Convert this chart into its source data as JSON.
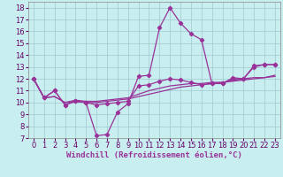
{
  "background_color": "#c8eef0",
  "plot_bg_color": "#c8eef0",
  "grid_color": "#a0c8d0",
  "line_color": "#993399",
  "xlabel": "Windchill (Refroidissement éolien,°C)",
  "xlabel_fontsize": 6.5,
  "tick_fontsize": 6.0,
  "xlim": [
    -0.5,
    23.5
  ],
  "ylim": [
    7,
    18.5
  ],
  "yticks": [
    7,
    8,
    9,
    10,
    11,
    12,
    13,
    14,
    15,
    16,
    17,
    18
  ],
  "xticks": [
    0,
    1,
    2,
    3,
    4,
    5,
    6,
    7,
    8,
    9,
    10,
    11,
    12,
    13,
    14,
    15,
    16,
    17,
    18,
    19,
    20,
    21,
    22,
    23
  ],
  "series1_x": [
    0,
    1,
    2,
    3,
    4,
    5,
    6,
    7,
    8,
    9,
    10,
    11,
    12,
    13,
    14,
    15,
    16,
    17,
    18,
    19,
    20,
    21,
    22,
    23
  ],
  "series1_y": [
    12.0,
    10.4,
    11.0,
    9.8,
    10.1,
    10.0,
    7.2,
    7.3,
    9.2,
    9.9,
    12.2,
    12.3,
    16.3,
    18.0,
    16.7,
    15.8,
    15.3,
    11.6,
    11.6,
    12.1,
    12.0,
    13.1,
    13.2,
    13.2
  ],
  "series2_x": [
    0,
    1,
    2,
    3,
    4,
    5,
    6,
    7,
    8,
    9,
    10,
    11,
    12,
    13,
    14,
    15,
    16,
    17,
    18,
    19,
    20,
    21,
    22,
    23
  ],
  "series2_y": [
    12.0,
    10.4,
    10.5,
    10.0,
    10.1,
    10.0,
    10.0,
    10.1,
    10.2,
    10.3,
    10.5,
    10.7,
    10.9,
    11.1,
    11.3,
    11.4,
    11.5,
    11.6,
    11.7,
    11.8,
    11.9,
    12.0,
    12.1,
    12.2
  ],
  "series3_x": [
    0,
    1,
    2,
    3,
    4,
    5,
    6,
    7,
    8,
    9,
    10,
    11,
    12,
    13,
    14,
    15,
    16,
    17,
    18,
    19,
    20,
    21,
    22,
    23
  ],
  "series3_y": [
    12.0,
    10.4,
    10.5,
    10.0,
    10.2,
    10.1,
    10.1,
    10.2,
    10.3,
    10.4,
    10.7,
    11.0,
    11.2,
    11.4,
    11.5,
    11.6,
    11.6,
    11.7,
    11.7,
    11.85,
    12.0,
    12.1,
    12.1,
    12.3
  ],
  "series4_x": [
    0,
    1,
    2,
    3,
    4,
    5,
    6,
    7,
    8,
    9,
    10,
    11,
    12,
    13,
    14,
    15,
    16,
    17,
    18,
    19,
    20,
    21,
    22,
    23
  ],
  "series4_y": [
    12.0,
    10.4,
    11.0,
    9.8,
    10.1,
    10.0,
    9.8,
    9.9,
    10.0,
    10.1,
    11.4,
    11.5,
    11.8,
    12.0,
    11.9,
    11.7,
    11.5,
    11.6,
    11.6,
    12.0,
    12.0,
    13.0,
    13.2,
    13.2
  ]
}
